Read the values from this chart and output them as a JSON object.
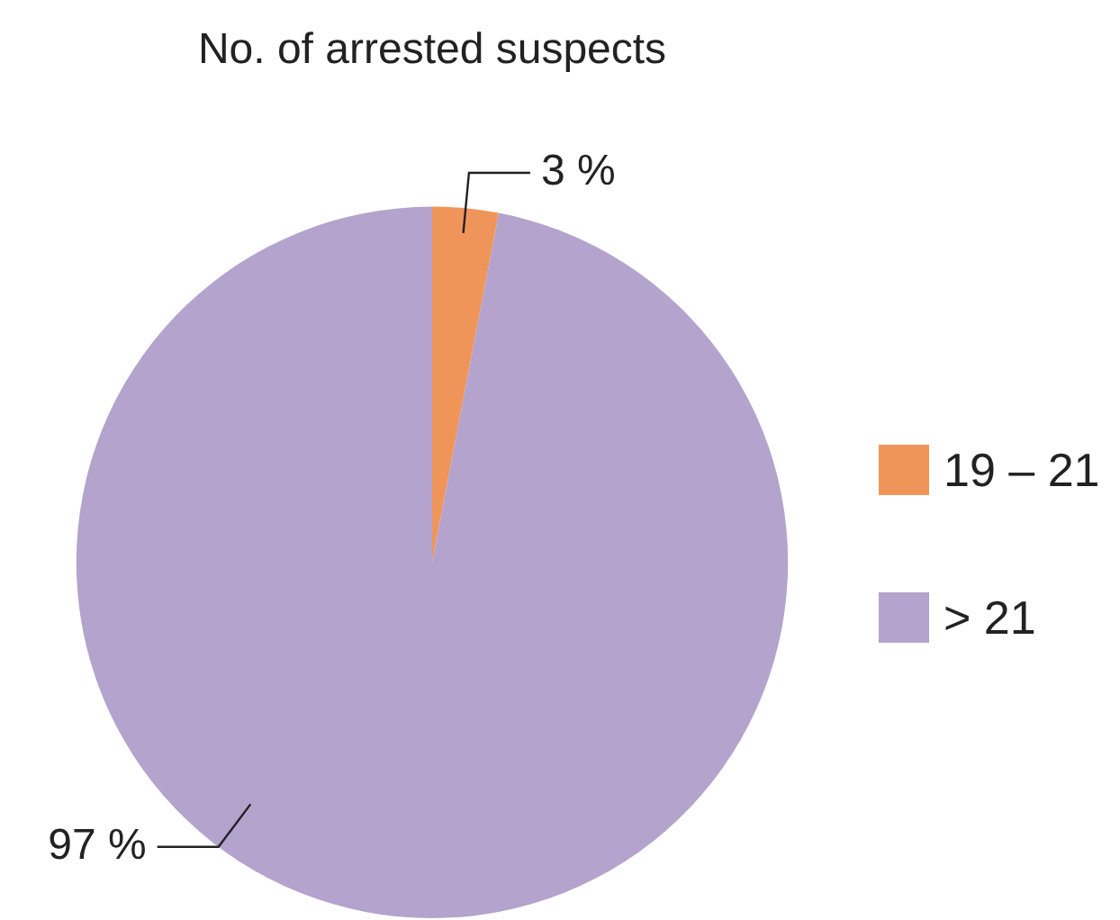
{
  "chart_data": {
    "type": "pie",
    "title": "No. of arrested suspects",
    "categories": [
      "19 – 21",
      "> 21"
    ],
    "values": [
      3,
      97
    ],
    "colors": [
      "#f0955a",
      "#b3a3cd"
    ],
    "value_labels": [
      "3 %",
      "97 %"
    ],
    "legend": "right"
  }
}
